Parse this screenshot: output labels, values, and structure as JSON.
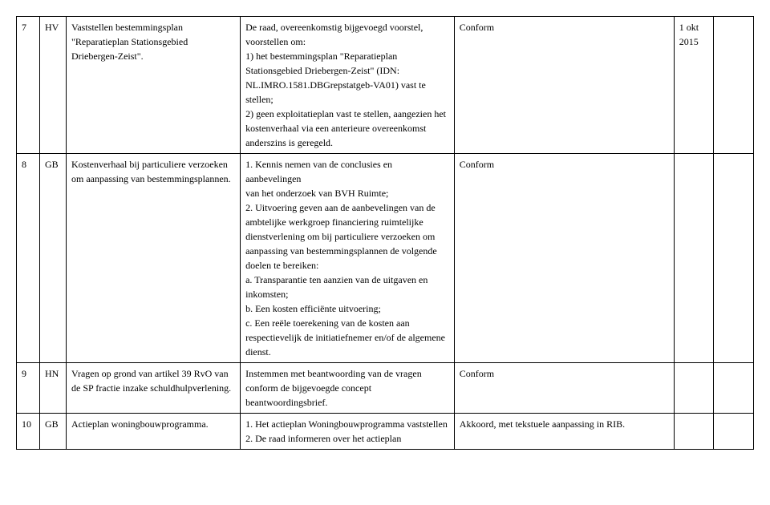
{
  "rows": [
    {
      "num": "7",
      "code": "HV",
      "subject": "Vaststellen bestemmingsplan \"Reparatieplan Stationsgebied Driebergen-Zeist\".",
      "proposal": "De raad, overeenkomstig bijgevoegd voorstel, voorstellen om:\n1) het bestemmingsplan \"Reparatieplan Stationsgebied Driebergen-Zeist\" (IDN: NL.IMRO.1581.DBGrepstatgeb-VA01) vast te stellen;\n2) geen exploitatieplan vast te stellen, aangezien het kostenverhaal via een anterieure overeenkomst anderszins is geregeld.",
      "decision": "Conform",
      "date": "1 okt 2015",
      "extra": ""
    },
    {
      "num": "8",
      "code": "GB",
      "subject": "Kostenverhaal bij particuliere verzoeken om aanpassing van bestemmingsplannen.",
      "proposal": "1. Kennis nemen van de conclusies en aanbevelingen\nvan het onderzoek van BVH Ruimte;\n2. Uitvoering geven aan de aanbevelingen van de ambtelijke werkgroep financiering ruimtelijke dienstverlening om bij particuliere verzoeken om\naanpassing van bestemmingsplannen de volgende doelen te bereiken:\na. Transparantie ten aanzien van de uitgaven en inkomsten;\nb. Een kosten efficiënte uitvoering;\nc. Een reële toerekening van de kosten aan respectievelijk de initiatiefnemer en/of de algemene dienst.",
      "decision": "Conform",
      "date": "",
      "extra": ""
    },
    {
      "num": "9",
      "code": "HN",
      "subject": "Vragen op grond van artikel 39 RvO van de SP fractie inzake schuldhulpverlening.",
      "proposal": "Instemmen met beantwoording van de vragen conform de bijgevoegde concept beantwoordingsbrief.",
      "decision": "Conform",
      "date": "",
      "extra": ""
    },
    {
      "num": "10",
      "code": "GB",
      "subject": "Actieplan woningbouwprogramma.",
      "proposal": "1. Het actieplan Woningbouwprogramma vaststellen\n2. De raad informeren over het actieplan",
      "decision": "Akkoord, met tekstuele aanpassing in RIB.",
      "date": "",
      "extra": ""
    }
  ]
}
